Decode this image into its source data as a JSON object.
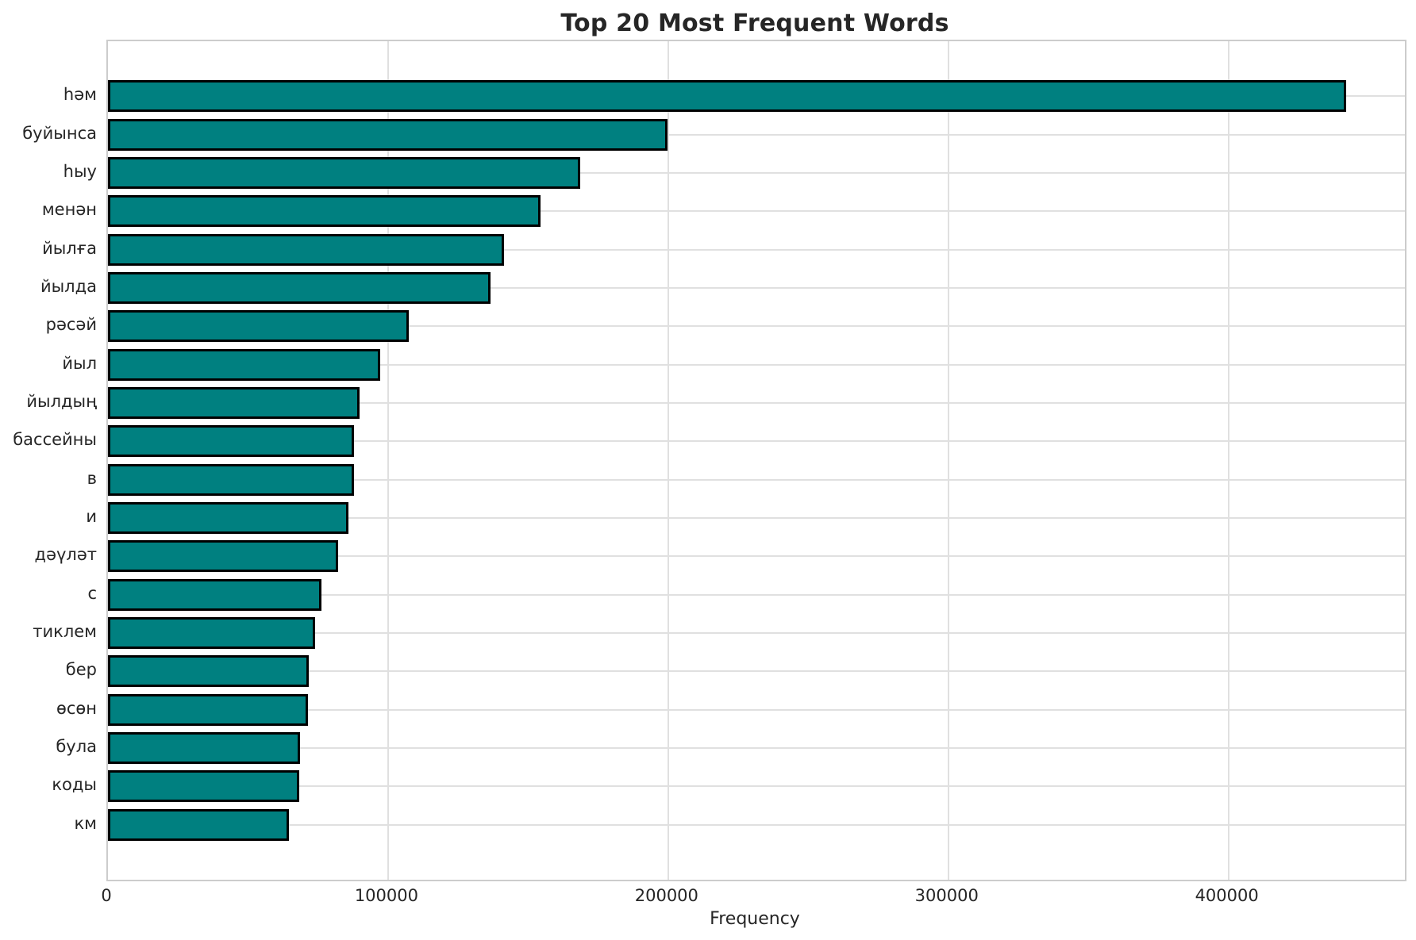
{
  "chart_data": {
    "type": "bar",
    "orientation": "horizontal",
    "title": "Top 20 Most Frequent Words",
    "xlabel": "Frequency",
    "ylabel": "",
    "categories": [
      "һәм",
      "буйынса",
      "һыу",
      "менән",
      "йылға",
      "йылда",
      "рәсәй",
      "йыл",
      "йылдың",
      "бассейны",
      "в",
      "и",
      "дәүләт",
      "с",
      "тиклем",
      "бер",
      "өсөн",
      "була",
      "коды",
      "км"
    ],
    "values": [
      442000,
      199900,
      168700,
      154300,
      141500,
      136700,
      107500,
      97300,
      89800,
      87800,
      87700,
      85800,
      82200,
      76200,
      74000,
      71700,
      71400,
      68600,
      68300,
      64600
    ],
    "xlim": [
      0,
      463000
    ],
    "xticks": [
      0,
      100000,
      200000,
      300000,
      400000
    ],
    "grid": true,
    "legend": "none",
    "bar_color": "#008080",
    "bar_edge_color": "#000000",
    "grid_color": "#e0e0e0",
    "text_color": "#262626",
    "background_color": "#ffffff"
  }
}
